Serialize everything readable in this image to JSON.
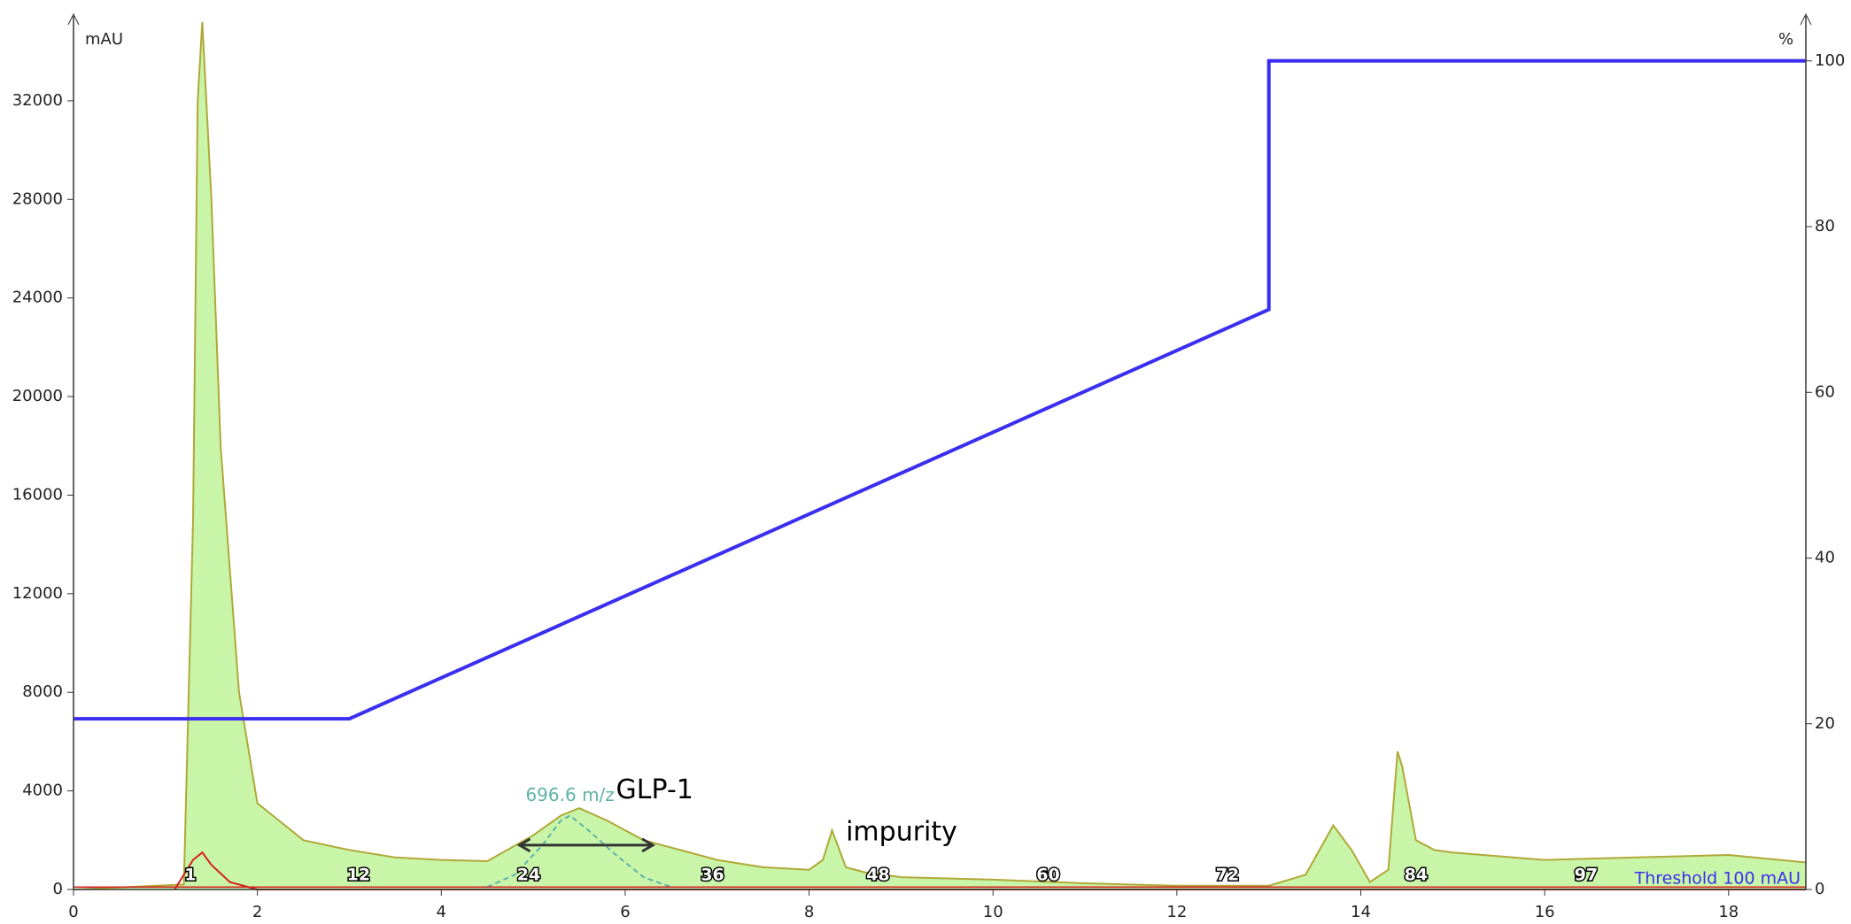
{
  "chart_data": {
    "type": "line",
    "y_label": "mAU",
    "y2_label": "%",
    "xlim": [
      0,
      18.84
    ],
    "xticks": [
      0,
      2,
      4,
      6,
      8,
      10,
      12,
      14,
      16,
      18
    ],
    "ylim": [
      0,
      35300
    ],
    "yticks": [
      0,
      4000,
      8000,
      12000,
      16000,
      20000,
      24000,
      28000,
      32000
    ],
    "y2lim": [
      0,
      105
    ],
    "y2ticks": [
      0,
      20,
      40,
      60,
      80,
      100
    ],
    "series": [
      {
        "color": "#b0a838",
        "fill": "#c8f5a8",
        "x": [
          0,
          1.2,
          1.3,
          1.35,
          1.4,
          1.5,
          1.6,
          1.8,
          2.0,
          2.5,
          3,
          3.5,
          4,
          4.5,
          5,
          5.3,
          5.5,
          5.8,
          6.2,
          6.6,
          7,
          7.5,
          8,
          8.15,
          8.25,
          8.4,
          8.6,
          9,
          10,
          11,
          12,
          13,
          13.4,
          13.7,
          13.9,
          14.1,
          14.3,
          14.4,
          14.45,
          14.6,
          14.8,
          15,
          16,
          17,
          18,
          18.84
        ],
        "values": [
          0,
          200,
          15000,
          32000,
          35200,
          28000,
          18000,
          8000,
          3500,
          2000,
          1600,
          1300,
          1200,
          1150,
          2200,
          3000,
          3300,
          2800,
          2000,
          1600,
          1200,
          900,
          800,
          1200,
          2400,
          900,
          700,
          500,
          400,
          250,
          150,
          150,
          600,
          2600,
          1600,
          300,
          800,
          5600,
          5000,
          2000,
          1600,
          1500,
          1200,
          1300,
          1400,
          1100
        ]
      },
      {
        "color": "#3a2ef0",
        "axis": "y2",
        "x": [
          0,
          3,
          13,
          13,
          18.84
        ],
        "values": [
          20.6,
          20.6,
          70,
          100,
          100
        ]
      },
      {
        "color": "#d42020",
        "x": [
          1.1,
          1.3,
          1.4,
          1.5,
          1.7,
          2.0,
          18.84
        ],
        "values": [
          0,
          1200,
          1500,
          1000,
          300,
          0,
          0
        ]
      },
      {
        "name": "696.6 m/z",
        "color": "#5fb3a8",
        "dashed": true,
        "x": [
          4.5,
          4.8,
          5.1,
          5.3,
          5.4,
          5.6,
          5.9,
          6.2,
          6.5
        ],
        "values": [
          100,
          600,
          1800,
          2800,
          3000,
          2400,
          1400,
          500,
          100
        ]
      }
    ],
    "fractions": {
      "numbers": [
        1,
        12,
        24,
        36,
        48,
        60,
        72,
        84,
        97
      ],
      "x": [
        1.27,
        3.1,
        4.95,
        6.95,
        8.75,
        10.6,
        12.55,
        14.6,
        16.45
      ]
    },
    "threshold": {
      "label": "Threshold 100 mAU",
      "value": 100
    },
    "annotations": [
      {
        "text": "GLP-1",
        "x": 5.9,
        "y": 4000
      },
      {
        "text": "impurity",
        "x": 8.4,
        "y": 2300
      }
    ],
    "range_arrow": {
      "x": [
        4.85,
        6.3
      ],
      "y": 1800
    }
  }
}
